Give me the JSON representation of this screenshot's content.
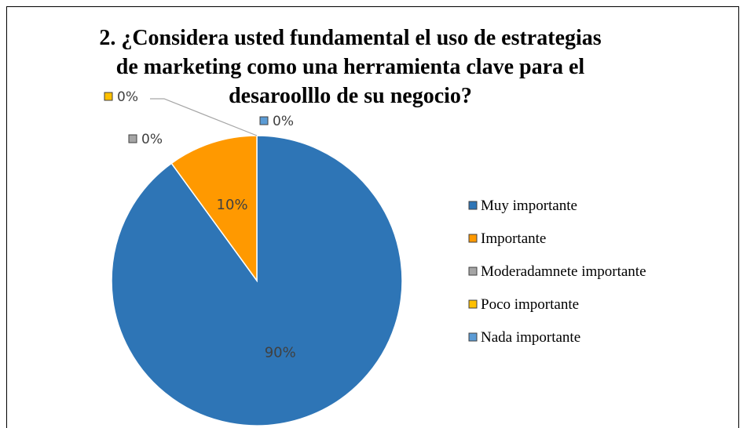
{
  "chart_data": {
    "type": "pie",
    "title": "2. ¿Considera usted fundamental el uso de estrategias de marketing como una herramienta clave para el desaroolllo de su negocio?",
    "title_lines": [
      "2. ¿Considera usted fundamental el uso de estrategias",
      "de marketing como una herramienta clave para el",
      "desaroolllo de su negocio?"
    ],
    "slices": [
      {
        "label": "Muy importante",
        "value": 90,
        "display": "90%",
        "color": "#2e75b6"
      },
      {
        "label": "Importante",
        "value": 10,
        "display": "10%",
        "color": "#ff9900"
      },
      {
        "label": "Moderadamnete importante",
        "value": 0,
        "display": "0%",
        "color": "#a5a5a5"
      },
      {
        "label": "Poco importante",
        "value": 0,
        "display": "0%",
        "color": "#ffc000"
      },
      {
        "label": "Nada importante",
        "value": 0,
        "display": "0%",
        "color": "#5b9bd5"
      }
    ],
    "legend_position": "right"
  }
}
